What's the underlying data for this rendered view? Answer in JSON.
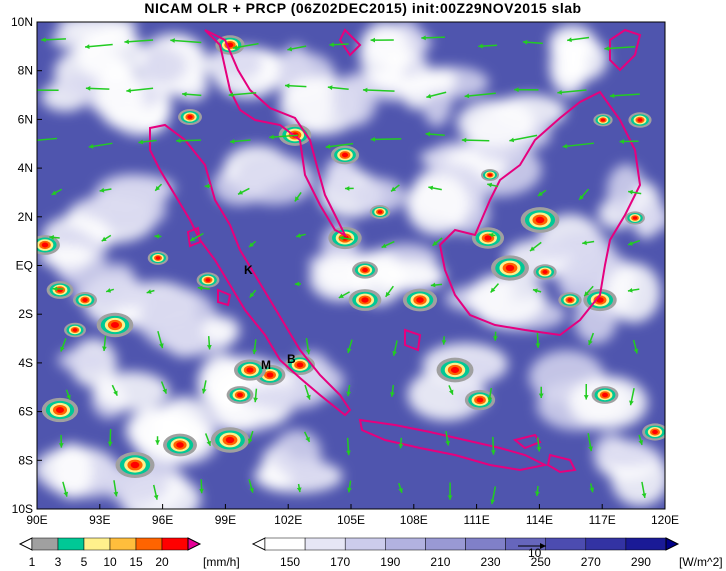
{
  "title": "NICAM OLR + PRCP (06Z02DEC2015) init:00Z29NOV2015 slab",
  "lat_labels": [
    "10N",
    "8N",
    "6N",
    "4N",
    "2N",
    "EQ",
    "2S",
    "4S",
    "6S",
    "8S",
    "10S"
  ],
  "lon_labels": [
    "90E",
    "93E",
    "96E",
    "99E",
    "102E",
    "105E",
    "108E",
    "111E",
    "114E",
    "117E",
    "120E"
  ],
  "map_labels": {
    "k": "K",
    "m": "M",
    "b": "B"
  },
  "precip_bar": {
    "ticks": [
      "1",
      "3",
      "5",
      "10",
      "15",
      "20"
    ],
    "unit": "[mm/h]",
    "colors": [
      "#a0a0a0",
      "#00c896",
      "#fff08c",
      "#ffbe3c",
      "#ff6400",
      "#ff0000",
      "#e60096"
    ]
  },
  "olr_bar": {
    "ticks": [
      "150",
      "170",
      "190",
      "210",
      "230",
      "250",
      "270",
      "290"
    ],
    "unit": "[W/m^2]",
    "colors": [
      "#ffffff",
      "#e6e6f5",
      "#ccccec",
      "#b2b2e0",
      "#9999d4",
      "#8080c8",
      "#6666bc",
      "#4c4cb0",
      "#3333a3",
      "#1a1a96",
      "#000088"
    ]
  },
  "colors": {
    "coast": "#e6007e",
    "wind": "#22cc22",
    "ocean": "#4f55ae"
  },
  "wind_scale_label": "10"
}
